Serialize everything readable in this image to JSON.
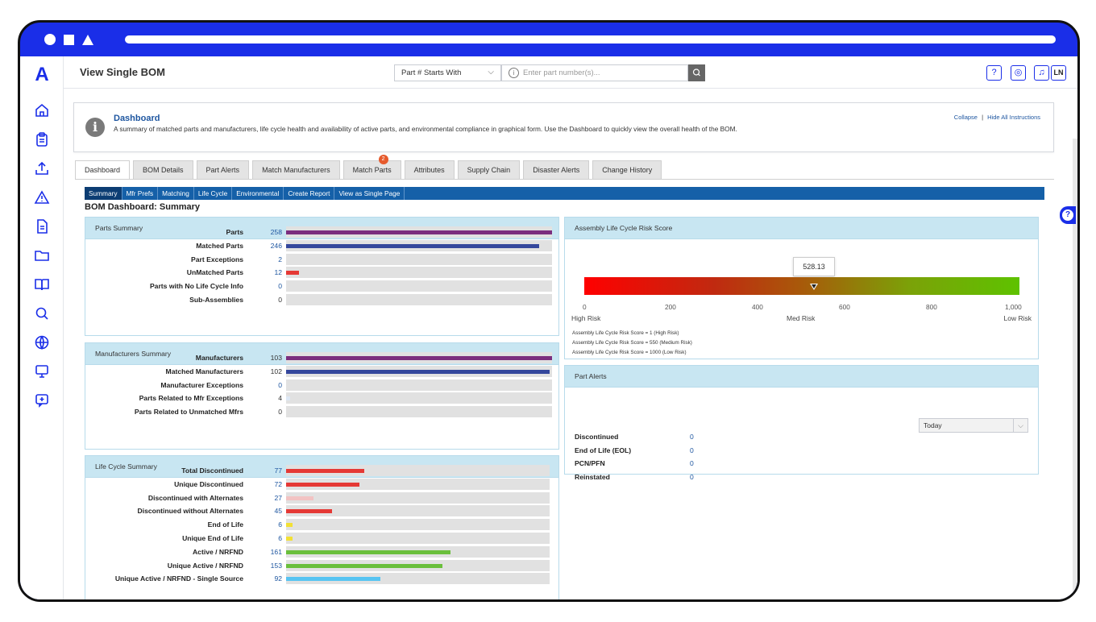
{
  "header": {
    "title": "View Single BOM",
    "search_mode": "Part # Starts With",
    "search_placeholder": "Enter part number(s)...",
    "help_icon": "?",
    "user_initials": "LN"
  },
  "instructions": {
    "title": "Dashboard",
    "text": "A summary of matched parts and manufacturers, life cycle health and availability of active parts, and environmental compliance in graphical form. Use the Dashboard to quickly view the overall health of the BOM.",
    "collapse": "Collapse",
    "separator": "|",
    "hide_all": "Hide All Instructions"
  },
  "tabs": [
    {
      "label": "Dashboard"
    },
    {
      "label": "BOM Details"
    },
    {
      "label": "Part Alerts"
    },
    {
      "label": "Match Manufacturers"
    },
    {
      "label": "Match Parts",
      "badge": "2"
    },
    {
      "label": "Attributes"
    },
    {
      "label": "Supply Chain"
    },
    {
      "label": "Disaster Alerts"
    },
    {
      "label": "Change History"
    }
  ],
  "subnav": [
    "Summary",
    "Mfr Prefs",
    "Matching",
    "Life Cycle",
    "Environmental",
    "Create Report",
    "View as Single Page"
  ],
  "dashboard_title": "BOM Dashboard: Summary",
  "parts_summary": {
    "title": "Parts Summary",
    "rows": [
      {
        "label": "Parts",
        "value": "258",
        "fraction": 1.0,
        "color": "#7b2e7e",
        "link": true
      },
      {
        "label": "Matched Parts",
        "value": "246",
        "fraction": 0.953,
        "color": "#34479c",
        "link": true
      },
      {
        "label": "Part Exceptions",
        "value": "2",
        "fraction": 0.0,
        "color": "#e53935",
        "link": true
      },
      {
        "label": "UnMatched Parts",
        "value": "12",
        "fraction": 0.047,
        "color": "#e53935",
        "link": true
      },
      {
        "label": "Parts with No Life Cycle Info",
        "value": "0",
        "fraction": 0.0,
        "color": "#e53935",
        "link": true
      },
      {
        "label": "Sub-Assemblies",
        "value": "0",
        "fraction": 0.0,
        "color": "#e53935",
        "link": false
      }
    ]
  },
  "manufacturers_summary": {
    "title": "Manufacturers Summary",
    "rows": [
      {
        "label": "Manufacturers",
        "value": "103",
        "fraction": 1.0,
        "color": "#7b2e7e",
        "link": false
      },
      {
        "label": "Matched Manufacturers",
        "value": "102",
        "fraction": 0.99,
        "color": "#34479c",
        "link": false
      },
      {
        "label": "Manufacturer Exceptions",
        "value": "0",
        "fraction": 0.0,
        "color": "#e53935",
        "link": true
      },
      {
        "label": "Parts Related to Mfr Exceptions",
        "value": "4",
        "fraction": 0.016,
        "color": "#dde8f5",
        "link": false
      },
      {
        "label": "Parts Related to Unmatched Mfrs",
        "value": "0",
        "fraction": 0.0,
        "color": "#e53935",
        "link": false
      }
    ]
  },
  "lifecycle_summary": {
    "title": "Life Cycle Summary",
    "rows": [
      {
        "label": "Total Discontinued",
        "value": "77",
        "fraction": 0.298,
        "color": "#e53935",
        "link": true
      },
      {
        "label": "Unique Discontinued",
        "value": "72",
        "fraction": 0.279,
        "color": "#e53935",
        "link": true
      },
      {
        "label": "Discontinued with Alternates",
        "value": "27",
        "fraction": 0.105,
        "color": "#f2c3c3",
        "link": true
      },
      {
        "label": "Discontinued without Alternates",
        "value": "45",
        "fraction": 0.174,
        "color": "#e53935",
        "link": true
      },
      {
        "label": "End of Life",
        "value": "6",
        "fraction": 0.023,
        "color": "#f2e035",
        "link": true
      },
      {
        "label": "Unique End of Life",
        "value": "6",
        "fraction": 0.023,
        "color": "#f2e035",
        "link": true
      },
      {
        "label": "Active / NRFND",
        "value": "161",
        "fraction": 0.624,
        "color": "#6abf3c",
        "link": true
      },
      {
        "label": "Unique Active / NRFND",
        "value": "153",
        "fraction": 0.593,
        "color": "#6abf3c",
        "link": true
      },
      {
        "label": "Unique Active / NRFND - Single Source",
        "value": "92",
        "fraction": 0.357,
        "color": "#57c4f2",
        "link": true
      }
    ]
  },
  "risk_score": {
    "title": "Assembly Life Cycle Risk Score",
    "score": "528.13",
    "score_value": 528.13,
    "scale_min": 0,
    "scale_max": 1000,
    "ticks": [
      "0",
      "200",
      "400",
      "600",
      "800",
      "1,000"
    ],
    "labels": [
      "High Risk",
      "Med Risk",
      "Low Risk"
    ],
    "notes": [
      "Assembly Life Cycle Risk Score = 1 (High Risk)",
      "Assembly Life Cycle Risk Score = 550 (Medium Risk)",
      "Assembly Life Cycle Risk Score = 1000 (Low Risk)"
    ]
  },
  "part_alerts": {
    "title": "Part Alerts",
    "period": "Today",
    "rows": [
      {
        "label": "Discontinued",
        "value": "0"
      },
      {
        "label": "End of Life (EOL)",
        "value": "0"
      },
      {
        "label": "PCN/PFN",
        "value": "0"
      },
      {
        "label": "Reinstated",
        "value": "0"
      }
    ]
  },
  "colors": {
    "brand": "#1a2ee8",
    "subnav": "#1560a8",
    "link": "#1e56a0",
    "panel_header": "#c8e6f2"
  }
}
